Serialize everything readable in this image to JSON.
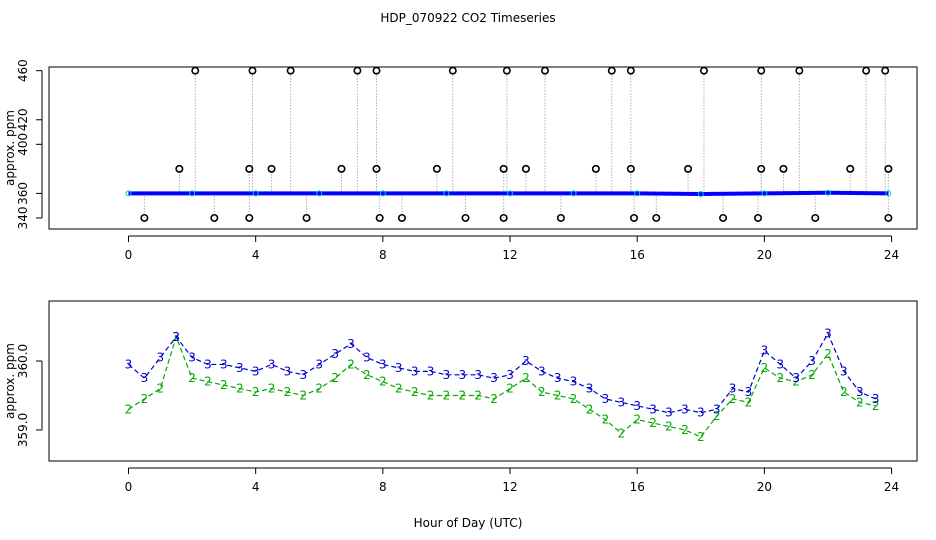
{
  "title": "HDP_070922  CO2 Timeseries",
  "xlabel": "Hour of Day (UTC)",
  "chart_data": [
    {
      "type": "scatter",
      "name": "raw-panel",
      "ylabel": "approx. ppm",
      "xlim": [
        -2.5,
        24.8
      ],
      "ylim": [
        331,
        463
      ],
      "xticks": [
        "0",
        "4",
        "8",
        "12",
        "16",
        "20",
        "24"
      ],
      "xtick_values": [
        0,
        4,
        8,
        12,
        16,
        20,
        24
      ],
      "yticks": [
        "340",
        "360",
        "400",
        "420",
        "460"
      ],
      "ytick_values": [
        340,
        360,
        400,
        420,
        460
      ],
      "baseline": 360,
      "series": [
        {
          "name": "flagged-high-460",
          "marker": "o",
          "color": "#000000",
          "x": [
            2.1,
            3.9,
            5.1,
            7.2,
            7.8,
            10.2,
            11.9,
            13.1,
            15.2,
            15.8,
            18.1,
            19.9,
            21.1,
            23.2,
            23.8
          ],
          "y": [
            460,
            460,
            460,
            460,
            460,
            460,
            460,
            460,
            460,
            460,
            460,
            460,
            460,
            460,
            460
          ]
        },
        {
          "name": "flagged-high-380",
          "marker": "o",
          "color": "#000000",
          "x": [
            1.6,
            3.8,
            4.5,
            6.7,
            7.8,
            9.7,
            11.8,
            12.5,
            14.7,
            15.8,
            17.6,
            19.9,
            20.6,
            22.7,
            23.9
          ],
          "y": [
            380,
            380,
            380,
            380,
            380,
            380,
            380,
            380,
            380,
            380,
            380,
            380,
            380,
            380,
            380
          ]
        },
        {
          "name": "flagged-low-340",
          "marker": "o",
          "color": "#000000",
          "x": [
            0.5,
            2.7,
            3.8,
            5.6,
            7.9,
            8.6,
            10.6,
            11.8,
            13.6,
            15.9,
            16.6,
            18.7,
            19.8,
            21.6,
            23.9
          ],
          "y": [
            340,
            340,
            340,
            340,
            340,
            340,
            340,
            340,
            340,
            340,
            340,
            340,
            340,
            340,
            340
          ]
        },
        {
          "name": "co2-blue",
          "marker": "line",
          "color": "#0000ff",
          "x": [
            0,
            2,
            4,
            6,
            8,
            10,
            12,
            14,
            16,
            18,
            20,
            22,
            23.9
          ],
          "y": [
            360,
            360,
            360,
            360,
            360,
            360,
            360,
            360,
            360,
            359.5,
            360,
            360.5,
            360
          ]
        }
      ]
    },
    {
      "type": "line",
      "name": "zoom-panel",
      "ylabel": "approx. ppm",
      "xlim": [
        -2.5,
        24.8
      ],
      "ylim": [
        358.55,
        360.87
      ],
      "xticks": [
        "0",
        "4",
        "8",
        "12",
        "16",
        "20",
        "24"
      ],
      "xtick_values": [
        0,
        4,
        8,
        12,
        16,
        20,
        24
      ],
      "yticks": [
        "359.0",
        "360.0"
      ],
      "ytick_values": [
        359.0,
        360.0
      ],
      "series": [
        {
          "name": "series-3",
          "marker": "3",
          "color": "#0000cc",
          "x": [
            0,
            0.5,
            1,
            1.5,
            2,
            2.5,
            3,
            3.5,
            4,
            4.5,
            5,
            5.5,
            6,
            6.5,
            7,
            7.5,
            8,
            8.5,
            9,
            9.5,
            10,
            10.5,
            11,
            11.5,
            12,
            12.5,
            13,
            13.5,
            14,
            14.5,
            15,
            15.5,
            16,
            16.5,
            17,
            17.5,
            18,
            18.5,
            19,
            19.5,
            20,
            20.5,
            21,
            21.5,
            22,
            22.5,
            23,
            23.5
          ],
          "y": [
            359.95,
            359.75,
            360.05,
            360.35,
            360.05,
            359.95,
            359.95,
            359.9,
            359.85,
            359.95,
            359.85,
            359.8,
            359.95,
            360.1,
            360.25,
            360.05,
            359.95,
            359.9,
            359.85,
            359.85,
            359.8,
            359.8,
            359.8,
            359.75,
            359.8,
            360.0,
            359.85,
            359.75,
            359.7,
            359.6,
            359.45,
            359.4,
            359.35,
            359.3,
            359.25,
            359.3,
            359.25,
            359.3,
            359.6,
            359.55,
            360.15,
            359.95,
            359.75,
            360.0,
            360.4,
            359.85,
            359.55,
            359.45
          ]
        },
        {
          "name": "series-2",
          "marker": "2",
          "color": "#00aa00",
          "x": [
            0,
            0.5,
            1,
            1.5,
            2,
            2.5,
            3,
            3.5,
            4,
            4.5,
            5,
            5.5,
            6,
            6.5,
            7,
            7.5,
            8,
            8.5,
            9,
            9.5,
            10,
            10.5,
            11,
            11.5,
            12,
            12.5,
            13,
            13.5,
            14,
            14.5,
            15,
            15.5,
            16,
            16.5,
            17,
            17.5,
            18,
            18.5,
            19,
            19.5,
            20,
            20.5,
            21,
            21.5,
            22,
            22.5,
            23,
            23.5
          ],
          "y": [
            359.3,
            359.45,
            359.6,
            360.35,
            359.75,
            359.7,
            359.65,
            359.6,
            359.55,
            359.6,
            359.55,
            359.5,
            359.6,
            359.75,
            359.95,
            359.8,
            359.7,
            359.6,
            359.55,
            359.5,
            359.5,
            359.5,
            359.5,
            359.45,
            359.6,
            359.75,
            359.55,
            359.5,
            359.45,
            359.3,
            359.15,
            358.95,
            359.15,
            359.1,
            359.05,
            359.0,
            358.9,
            359.2,
            359.45,
            359.4,
            359.9,
            359.75,
            359.7,
            359.8,
            360.1,
            359.55,
            359.4,
            359.35
          ]
        }
      ]
    }
  ]
}
